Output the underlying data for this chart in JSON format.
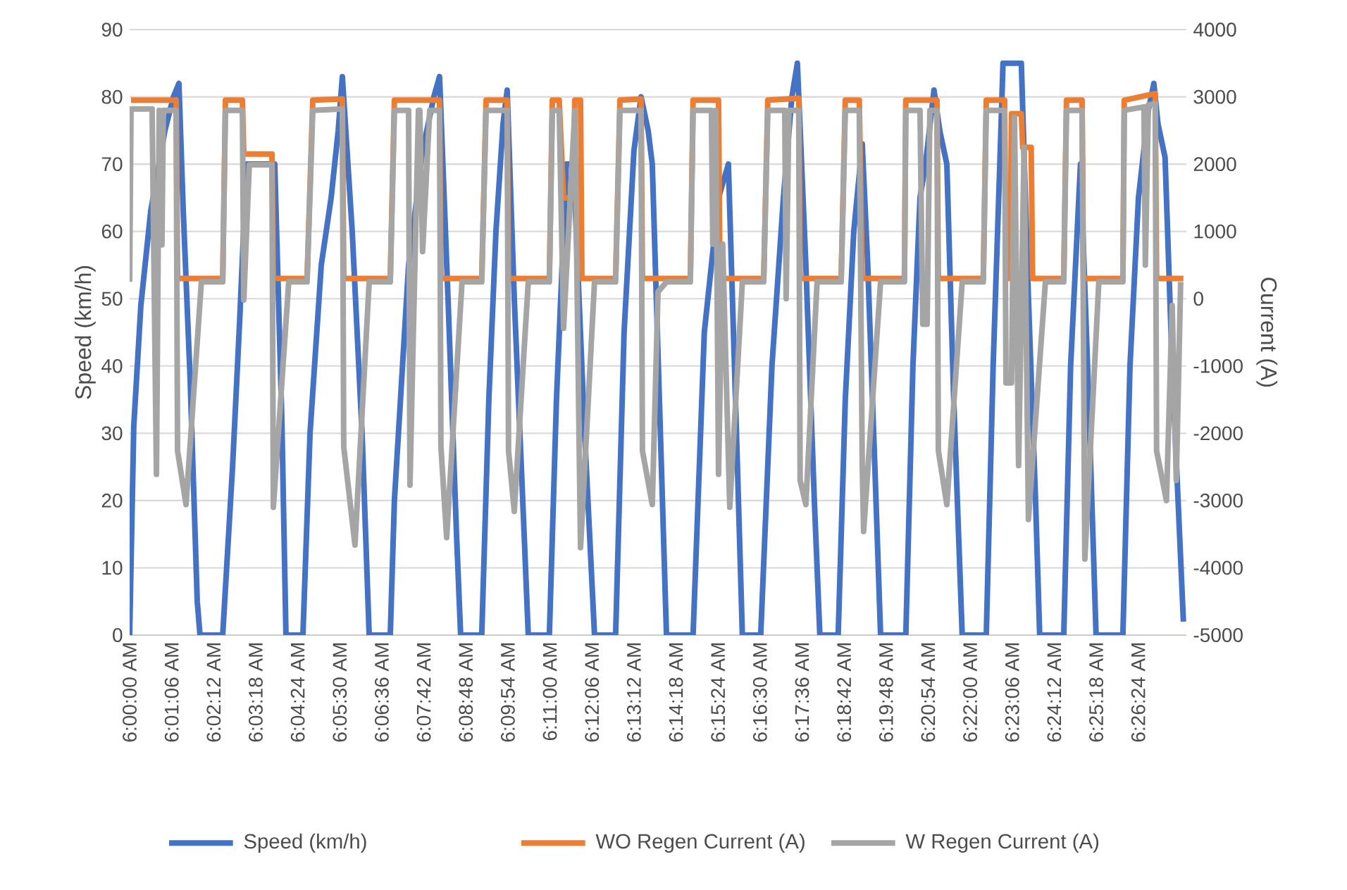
{
  "chart_data": {
    "type": "line",
    "ylabel": "Speed (km/h)",
    "y2label": "Current (A)",
    "xlim": [
      6,
      6.461
    ],
    "ylim": [
      0,
      90
    ],
    "y2lim": [
      -5000,
      4000
    ],
    "yticks": [
      0,
      10,
      20,
      30,
      40,
      50,
      60,
      70,
      80,
      90
    ],
    "y2ticks": [
      -5000,
      -4000,
      -3000,
      -2000,
      -1000,
      0,
      1000,
      2000,
      3000,
      4000
    ],
    "xticks": [
      {
        "value": 6,
        "label": "6:00:00 AM"
      },
      {
        "value": 6.01833,
        "label": "6:01:06 AM"
      },
      {
        "value": 6.03667,
        "label": "6:02:12 AM"
      },
      {
        "value": 6.055,
        "label": "6:03:18 AM"
      },
      {
        "value": 6.07333,
        "label": "6:04:24 AM"
      },
      {
        "value": 6.09167,
        "label": "6:05:30 AM"
      },
      {
        "value": 6.11,
        "label": "6:06:36 AM"
      },
      {
        "value": 6.12833,
        "label": "6:07:42 AM"
      },
      {
        "value": 6.14667,
        "label": "6:08:48 AM"
      },
      {
        "value": 6.165,
        "label": "6:09:54 AM"
      },
      {
        "value": 6.18333,
        "label": "6:11:00 AM"
      },
      {
        "value": 6.20167,
        "label": "6:12:06 AM"
      },
      {
        "value": 6.22,
        "label": "6:13:12 AM"
      },
      {
        "value": 6.23833,
        "label": "6:14:18 AM"
      },
      {
        "value": 6.25667,
        "label": "6:15:24 AM"
      },
      {
        "value": 6.275,
        "label": "6:16:30 AM"
      },
      {
        "value": 6.29333,
        "label": "6:17:36 AM"
      },
      {
        "value": 6.31167,
        "label": "6:18:42 AM"
      },
      {
        "value": 6.33,
        "label": "6:19:48 AM"
      },
      {
        "value": 6.34833,
        "label": "6:20:54 AM"
      },
      {
        "value": 6.36667,
        "label": "6:22:00 AM"
      },
      {
        "value": 6.385,
        "label": "6:23:06 AM"
      },
      {
        "value": 6.40333,
        "label": "6:24:12 AM"
      },
      {
        "value": 6.42167,
        "label": "6:25:18 AM"
      },
      {
        "value": 6.44,
        "label": "6:26:24 AM"
      }
    ],
    "grid": "y",
    "legend": "bottom",
    "series": [
      {
        "name": "Speed (km/h)",
        "color": "#4472c4",
        "x": [
          6.0,
          6.0018,
          6.0049,
          6.0092,
          6.0154,
          6.0191,
          6.0215,
          6.0234,
          6.0264,
          6.0295,
          6.0307,
          6.0406,
          6.0449,
          6.0479,
          6.051,
          6.0633,
          6.0664,
          6.0682,
          6.0756,
          6.0787,
          6.0836,
          6.0879,
          6.091,
          6.0928,
          6.0971,
          6.1014,
          6.1045,
          6.1137,
          6.1155,
          6.1217,
          6.1278,
          6.1327,
          6.1352,
          6.1389,
          6.1426,
          6.1444,
          6.1536,
          6.1567,
          6.1598,
          6.1629,
          6.1647,
          6.1678,
          6.1721,
          6.1739,
          6.1831,
          6.1862,
          6.1893,
          6.1905,
          6.1936,
          6.1985,
          6.2028,
          6.212,
          6.2157,
          6.22,
          6.2231,
          6.2262,
          6.228,
          6.2311,
          6.2342,
          6.2458,
          6.2507,
          6.2569,
          6.2612,
          6.2643,
          6.2673,
          6.2753,
          6.2802,
          6.2852,
          6.2889,
          6.2913,
          6.295,
          6.2987,
          6.3011,
          6.3091,
          6.3122,
          6.3159,
          6.3196,
          6.322,
          6.3251,
          6.3276,
          6.3386,
          6.3417,
          6.3448,
          6.3472,
          6.3509,
          6.3534,
          6.3565,
          6.3595,
          6.3632,
          6.3737,
          6.3767,
          6.3798,
          6.381,
          6.389,
          6.3921,
          6.3952,
          6.397,
          6.4075,
          6.4105,
          6.4148,
          6.4179,
          6.4216,
          6.4333,
          6.4364,
          6.4401,
          6.4444,
          6.4468,
          6.4486,
          6.4517,
          6.4548,
          6.4597
        ],
        "values": [
          0,
          31,
          49,
          63,
          75,
          80,
          82,
          63,
          38,
          5,
          0,
          0,
          25,
          46,
          70,
          70,
          32,
          0,
          0,
          30,
          55,
          65,
          75,
          83,
          60,
          30,
          0,
          0,
          20,
          55,
          72,
          80,
          83,
          50,
          15,
          0,
          0,
          35,
          60,
          76,
          81,
          50,
          15,
          0,
          0,
          35,
          60,
          70,
          70,
          30,
          0,
          0,
          45,
          72,
          80,
          75,
          70,
          35,
          0,
          0,
          45,
          65,
          70,
          35,
          0,
          0,
          40,
          65,
          80,
          85,
          55,
          20,
          0,
          0,
          35,
          60,
          73,
          55,
          25,
          0,
          0,
          40,
          65,
          70,
          81,
          75,
          70,
          35,
          0,
          0,
          40,
          72,
          85,
          85,
          50,
          20,
          0,
          0,
          40,
          70,
          40,
          0,
          0,
          40,
          65,
          78,
          82,
          76,
          71,
          40,
          2
        ]
      },
      {
        "name": "WO Regen Current (A)",
        "color": "#ed7d31",
        "axis": "y2",
        "x": [
          6.0006,
          6.0203,
          6.0209,
          6.0406,
          6.0418,
          6.0492,
          6.0498,
          6.0621,
          6.0627,
          6.0774,
          6.0799,
          6.0928,
          6.0934,
          6.1137,
          6.1155,
          6.1352,
          6.1358,
          6.1536,
          6.1555,
          6.1647,
          6.1653,
          6.1831,
          6.1844,
          6.1874,
          6.1893,
          6.1936,
          6.1942,
          6.1967,
          6.1973,
          6.212,
          6.2139,
          6.2231,
          6.2237,
          6.2446,
          6.2458,
          6.2569,
          6.2575,
          6.2766,
          6.2784,
          6.2919,
          6.2925,
          6.3104,
          6.3122,
          6.3183,
          6.3196,
          6.338,
          6.3386,
          6.3522,
          6.3528,
          6.3724,
          6.3737,
          6.3817,
          6.3823,
          6.3841,
          6.3847,
          6.389,
          6.3896,
          6.3933,
          6.3939,
          6.4075,
          6.4087,
          6.4155,
          6.4161,
          6.4333,
          6.4339,
          6.4474,
          6.448,
          6.4597
        ],
        "values": [
          2950,
          2950,
          300,
          300,
          2950,
          2950,
          2150,
          2150,
          300,
          300,
          2950,
          2970,
          300,
          300,
          2950,
          2950,
          300,
          300,
          2950,
          2950,
          300,
          300,
          2950,
          2950,
          1500,
          1500,
          2950,
          2950,
          300,
          300,
          2950,
          2970,
          300,
          300,
          2950,
          2950,
          300,
          300,
          2950,
          2980,
          300,
          300,
          2950,
          2950,
          300,
          300,
          2950,
          2950,
          300,
          300,
          2950,
          2950,
          300,
          300,
          2750,
          2750,
          2250,
          2250,
          300,
          300,
          2950,
          2950,
          300,
          300,
          2950,
          3050,
          300,
          300
        ]
      },
      {
        "name": "W Regen Current (A)",
        "color": "#a5a5a5",
        "axis": "y2",
        "x": [
          6.0,
          6.0006,
          6.0098,
          6.0117,
          6.0129,
          6.0141,
          6.0147,
          6.0203,
          6.0209,
          6.0246,
          6.0313,
          6.0406,
          6.0418,
          6.0492,
          6.0498,
          6.0522,
          6.0621,
          6.0627,
          6.0694,
          6.0774,
          6.0799,
          6.0928,
          6.0934,
          6.0983,
          6.1045,
          6.1137,
          6.1155,
          6.1217,
          6.1223,
          6.1235,
          6.126,
          6.1266,
          6.1278,
          6.1309,
          6.1352,
          6.1358,
          6.1383,
          6.145,
          6.1536,
          6.1555,
          6.1647,
          6.1653,
          6.1678,
          6.1739,
          6.1831,
          6.1844,
          6.1874,
          6.1893,
          6.1942,
          6.1967,
          6.2028,
          6.212,
          6.2139,
          6.2231,
          6.2237,
          6.228,
          6.2305,
          6.2342,
          6.2446,
          6.2458,
          6.2538,
          6.2544,
          6.2557,
          6.2569,
          6.2587,
          6.2618,
          6.2673,
          6.2766,
          6.2784,
          6.2858,
          6.2864,
          6.2876,
          6.2919,
          6.2925,
          6.295,
          6.2999,
          6.3104,
          6.3122,
          6.3183,
          6.3196,
          6.3202,
          6.3276,
          6.338,
          6.3386,
          6.3448,
          6.346,
          6.3479,
          6.3491,
          6.3522,
          6.3528,
          6.3565,
          6.3632,
          6.3724,
          6.3737,
          6.3817,
          6.3823,
          6.3847,
          6.386,
          6.3878,
          6.3902,
          6.3921,
          6.3995,
          6.4075,
          6.4087,
          6.4155,
          6.4167,
          6.4228,
          6.4333,
          6.4339,
          6.4425,
          6.4431,
          6.4444,
          6.4474,
          6.448,
          6.4523,
          6.4548,
          6.4566,
          6.4585
        ],
        "values": [
          250,
          2820,
          2820,
          -2610,
          2800,
          800,
          2800,
          2800,
          -2260,
          -3060,
          250,
          250,
          2800,
          2800,
          -20,
          1990,
          1990,
          -3100,
          250,
          250,
          2800,
          2820,
          -2200,
          -3660,
          250,
          250,
          2800,
          2800,
          -2770,
          -900,
          2800,
          2800,
          700,
          2800,
          2800,
          -2200,
          -3550,
          250,
          250,
          2800,
          2800,
          -2260,
          -3160,
          250,
          250,
          2800,
          2800,
          -440,
          2800,
          -3700,
          250,
          250,
          2800,
          2800,
          -2260,
          -3060,
          100,
          250,
          250,
          2800,
          2800,
          810,
          2800,
          -2610,
          810,
          -3100,
          250,
          250,
          2800,
          2800,
          0,
          2800,
          2800,
          -2700,
          -3060,
          250,
          250,
          2800,
          2800,
          -2480,
          -3460,
          250,
          250,
          2800,
          2800,
          -380,
          -380,
          2800,
          2800,
          -2260,
          -3060,
          250,
          250,
          2800,
          2800,
          -1250,
          -1250,
          2700,
          -2480,
          2250,
          -3280,
          250,
          250,
          2800,
          2800,
          -3870,
          250,
          250,
          2800,
          2850,
          500,
          2880,
          2900,
          -2260,
          -3000,
          -100,
          -2700,
          250
        ]
      }
    ]
  }
}
